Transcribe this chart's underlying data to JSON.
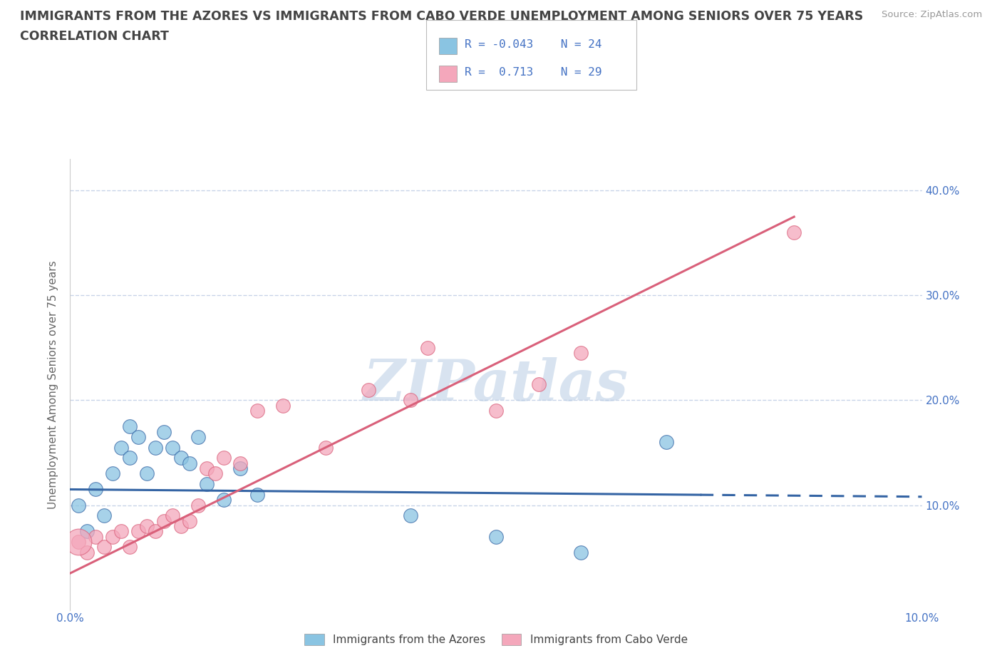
{
  "title_line1": "IMMIGRANTS FROM THE AZORES VS IMMIGRANTS FROM CABO VERDE UNEMPLOYMENT AMONG SENIORS OVER 75 YEARS",
  "title_line2": "CORRELATION CHART",
  "source": "Source: ZipAtlas.com",
  "ylabel": "Unemployment Among Seniors over 75 years",
  "watermark": "ZIPatlas",
  "xlim": [
    0.0,
    0.1
  ],
  "ylim": [
    0.0,
    0.43
  ],
  "yticks_right": [
    0.1,
    0.2,
    0.3,
    0.4
  ],
  "ytick_labels_right": [
    "10.0%",
    "20.0%",
    "30.0%",
    "40.0%"
  ],
  "xtick_labels": [
    "0.0%",
    "",
    "",
    "",
    "",
    "10.0%"
  ],
  "legend_label1": "Immigrants from the Azores",
  "legend_label2": "Immigrants from Cabo Verde",
  "legend_R1": "R = -0.043",
  "legend_N1": "N = 24",
  "legend_R2": "R =  0.713",
  "legend_N2": "N = 29",
  "color_azores": "#8ac4e2",
  "color_cabo": "#f4a7bb",
  "color_azores_line": "#3464a4",
  "color_cabo_line": "#d9607a",
  "color_text_blue": "#4472c4",
  "color_title": "#444444",
  "background_color": "#ffffff",
  "grid_color": "#c8d4e8",
  "azores_line_y0": 0.115,
  "azores_line_y1": 0.108,
  "cabo_line_y0": 0.035,
  "cabo_line_y1": 0.375,
  "azores_x": [
    0.001,
    0.002,
    0.003,
    0.004,
    0.005,
    0.006,
    0.007,
    0.007,
    0.008,
    0.009,
    0.01,
    0.011,
    0.012,
    0.013,
    0.014,
    0.015,
    0.016,
    0.018,
    0.02,
    0.022,
    0.04,
    0.05,
    0.06,
    0.07
  ],
  "azores_y": [
    0.1,
    0.075,
    0.115,
    0.09,
    0.13,
    0.155,
    0.145,
    0.175,
    0.165,
    0.13,
    0.155,
    0.17,
    0.155,
    0.145,
    0.14,
    0.165,
    0.12,
    0.105,
    0.135,
    0.11,
    0.09,
    0.07,
    0.055,
    0.16
  ],
  "cabo_x": [
    0.001,
    0.002,
    0.003,
    0.004,
    0.005,
    0.006,
    0.007,
    0.008,
    0.009,
    0.01,
    0.011,
    0.012,
    0.013,
    0.014,
    0.015,
    0.016,
    0.017,
    0.018,
    0.02,
    0.022,
    0.025,
    0.03,
    0.035,
    0.04,
    0.042,
    0.05,
    0.055,
    0.06,
    0.085
  ],
  "cabo_y": [
    0.065,
    0.055,
    0.07,
    0.06,
    0.07,
    0.075,
    0.06,
    0.075,
    0.08,
    0.075,
    0.085,
    0.09,
    0.08,
    0.085,
    0.1,
    0.135,
    0.13,
    0.145,
    0.14,
    0.19,
    0.195,
    0.155,
    0.21,
    0.2,
    0.25,
    0.19,
    0.215,
    0.245,
    0.36
  ],
  "cabo_large_x": [
    0.001
  ],
  "cabo_large_y": [
    0.065
  ]
}
